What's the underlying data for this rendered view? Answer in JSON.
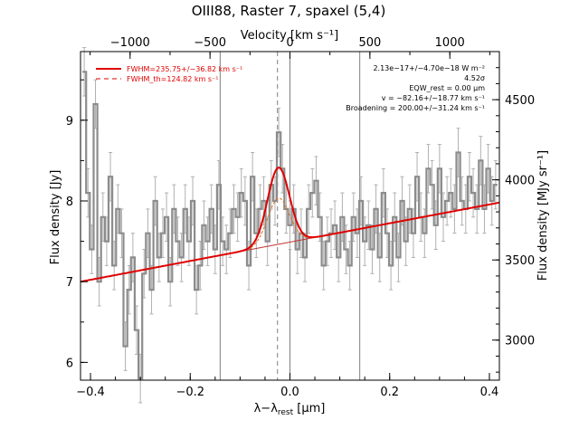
{
  "chart_data": {
    "type": "line",
    "title": "OIII88, Raster 7, spaxel (5,4)",
    "xlabel": "λ−λ_rest [µm]",
    "xlabel_main": "λ−λ",
    "xlabel_sub": "rest",
    "xlabel_unit": " [µm]",
    "ylabel": "Flux density [Jy]",
    "ylabel_right": "Flux density [MJy sr⁻¹]",
    "xlabel_top": "Velocity [km s⁻¹]",
    "xlim": [
      -0.42,
      0.42
    ],
    "ylim": [
      5.78,
      9.85
    ],
    "ylim_right": [
      2750,
      4800
    ],
    "vlim_top": [
      -1310,
      1310
    ],
    "x_ticks": [
      -0.4,
      -0.2,
      0.0,
      0.2,
      0.4
    ],
    "x_tick_labels": [
      "−0.4",
      "−0.2",
      "0.0",
      "0.2",
      "0.4"
    ],
    "y_ticks": [
      6,
      7,
      8,
      9
    ],
    "y_tick_labels": [
      "6",
      "7",
      "8",
      "9"
    ],
    "y_right_ticks": [
      3000,
      3500,
      4000,
      4500
    ],
    "y_right_tick_labels": [
      "3000",
      "3500",
      "4000",
      "4500"
    ],
    "top_ticks": [
      -1000,
      -500,
      0,
      500,
      1000
    ],
    "top_tick_labels": [
      "−1000",
      "−500",
      "0",
      "500",
      "1000"
    ],
    "vertical_lines": [
      -0.14,
      0.0,
      0.14
    ],
    "dashed_line": -0.025,
    "grid": false,
    "legend": {
      "position": "top-left",
      "entries": [
        {
          "label": "FWHM=235.75+/−36.82 km s⁻¹",
          "style": "solid",
          "color": "#e00000"
        },
        {
          "label": "FWHM_th=124.82 km s⁻¹",
          "style": "dashed",
          "color": "#e00000"
        }
      ]
    },
    "annotations": [
      "2.13e−17+/−4.70e−18 W m⁻²",
      "4.52σ",
      "EQW_rest = 0.00 µm",
      "v = −82.16+/−18.77 km s⁻¹",
      "Broadening = 200.00+/−31.24 km s⁻¹"
    ],
    "series": [
      {
        "name": "spectrum",
        "style": "histogram",
        "color": "#8c8c8c",
        "x": [
          -0.4125,
          -0.405,
          -0.3975,
          -0.39,
          -0.3825,
          -0.375,
          -0.3675,
          -0.36,
          -0.3525,
          -0.345,
          -0.3375,
          -0.33,
          -0.3225,
          -0.315,
          -0.3075,
          -0.3,
          -0.2925,
          -0.285,
          -0.2775,
          -0.27,
          -0.2625,
          -0.255,
          -0.2475,
          -0.24,
          -0.2325,
          -0.225,
          -0.2175,
          -0.21,
          -0.2025,
          -0.195,
          -0.1875,
          -0.18,
          -0.1725,
          -0.165,
          -0.1575,
          -0.15,
          -0.1425,
          -0.135,
          -0.1275,
          -0.12,
          -0.1125,
          -0.105,
          -0.0975,
          -0.09,
          -0.0825,
          -0.075,
          -0.0675,
          -0.06,
          -0.0525,
          -0.045,
          -0.0375,
          -0.03,
          -0.0225,
          -0.015,
          -0.0075,
          0.0,
          0.0075,
          0.015,
          0.0225,
          0.03,
          0.0375,
          0.045,
          0.0525,
          0.06,
          0.0675,
          0.075,
          0.0825,
          0.09,
          0.0975,
          0.105,
          0.1125,
          0.12,
          0.1275,
          0.135,
          0.1425,
          0.15,
          0.1575,
          0.165,
          0.1725,
          0.18,
          0.1875,
          0.195,
          0.2025,
          0.21,
          0.2175,
          0.225,
          0.2325,
          0.24,
          0.2475,
          0.255,
          0.2625,
          0.27,
          0.2775,
          0.285,
          0.2925,
          0.3,
          0.3075,
          0.315,
          0.3225,
          0.33,
          0.3375,
          0.345,
          0.3525,
          0.36,
          0.3675,
          0.375,
          0.3825,
          0.39,
          0.3975,
          0.405,
          0.4125
        ],
        "values": [
          9.6,
          8.1,
          7.4,
          9.2,
          7.0,
          7.8,
          7.5,
          8.3,
          7.2,
          7.9,
          7.6,
          6.2,
          6.9,
          7.3,
          6.4,
          5.8,
          7.1,
          7.6,
          6.9,
          8.0,
          7.3,
          7.6,
          7.8,
          7.0,
          7.9,
          7.5,
          7.3,
          7.9,
          7.5,
          8.0,
          6.9,
          7.2,
          7.7,
          7.5,
          7.9,
          7.4,
          8.2,
          7.5,
          7.4,
          7.6,
          7.9,
          7.8,
          8.1,
          8.0,
          7.2,
          8.3,
          7.6,
          7.9,
          8.0,
          7.5,
          8.2,
          8.0,
          8.85,
          8.4,
          7.9,
          7.7,
          7.9,
          7.4,
          7.6,
          7.3,
          7.9,
          8.1,
          8.25,
          7.8,
          7.2,
          7.5,
          7.6,
          7.7,
          7.3,
          7.8,
          7.4,
          7.2,
          7.8,
          7.6,
          8.0,
          7.5,
          7.7,
          7.4,
          7.9,
          7.3,
          8.1,
          7.6,
          7.2,
          7.8,
          7.3,
          8.0,
          7.5,
          7.9,
          7.6,
          8.3,
          7.8,
          7.6,
          8.4,
          8.2,
          7.7,
          8.4,
          7.8,
          8.0,
          8.1,
          7.9,
          8.6,
          8.0,
          7.9,
          8.3,
          8.1,
          7.9,
          8.5,
          7.9,
          8.4,
          8.0,
          8.2
        ],
        "errors": [
          0.3,
          0.3,
          0.3,
          0.3,
          0.3,
          0.3,
          0.3,
          0.3,
          0.3,
          0.3,
          0.3,
          0.3,
          0.3,
          0.3,
          0.3,
          0.3,
          0.3,
          0.3,
          0.3,
          0.3,
          0.3,
          0.3,
          0.3,
          0.3,
          0.3,
          0.3,
          0.3,
          0.3,
          0.3,
          0.3,
          0.3,
          0.3,
          0.3,
          0.3,
          0.3,
          0.3,
          0.3,
          0.3,
          0.3,
          0.3,
          0.3,
          0.3,
          0.3,
          0.3,
          0.3,
          0.3,
          0.3,
          0.3,
          0.3,
          0.3,
          0.3,
          0.3,
          0.3,
          0.3,
          0.3,
          0.3,
          0.3,
          0.3,
          0.3,
          0.3,
          0.3,
          0.3,
          0.3,
          0.3,
          0.3,
          0.3,
          0.3,
          0.3,
          0.3,
          0.3,
          0.3,
          0.3,
          0.3,
          0.3,
          0.3,
          0.3,
          0.3,
          0.3,
          0.3,
          0.3,
          0.3,
          0.3,
          0.3,
          0.3,
          0.3,
          0.3,
          0.3,
          0.3,
          0.3,
          0.3,
          0.3,
          0.3,
          0.3,
          0.3,
          0.3,
          0.3,
          0.3,
          0.3,
          0.3,
          0.3,
          0.3,
          0.3,
          0.3,
          0.3,
          0.3,
          0.3,
          0.3,
          0.3,
          0.3,
          0.3,
          0.3
        ]
      },
      {
        "name": "fit",
        "style": "solid",
        "color": "#e00000",
        "baseline": [
          [
            -0.42,
            7.0
          ],
          [
            0.42,
            7.98
          ]
        ],
        "gaussian": {
          "center": -0.023,
          "amplitude": 0.95,
          "sigma": 0.022
        }
      }
    ]
  }
}
